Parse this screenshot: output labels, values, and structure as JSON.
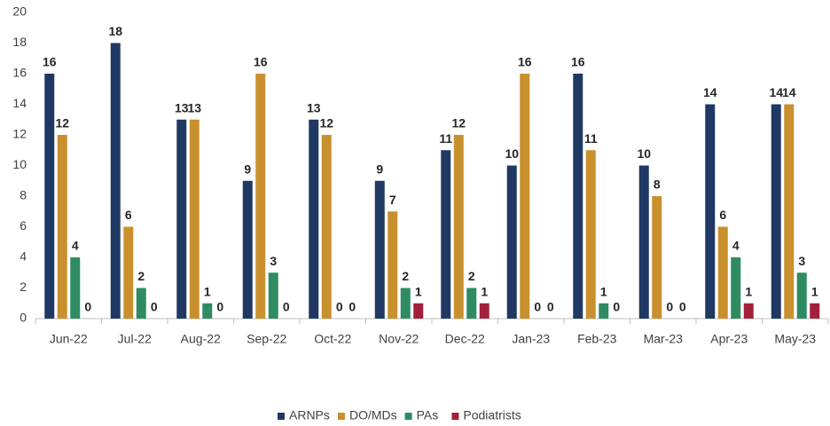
{
  "chart_data": {
    "type": "bar",
    "categories": [
      "Jun-22",
      "Jul-22",
      "Aug-22",
      "Sep-22",
      "Oct-22",
      "Nov-22",
      "Dec-22",
      "Jan-23",
      "Feb-23",
      "Mar-23",
      "Apr-23",
      "May-23"
    ],
    "series": [
      {
        "name": "ARNPs",
        "color": "#1f3864",
        "values": [
          16,
          18,
          13,
          9,
          13,
          9,
          11,
          10,
          16,
          10,
          14,
          14
        ]
      },
      {
        "name": "DO/MDs",
        "color": "#c9902e",
        "values": [
          12,
          6,
          13,
          16,
          12,
          7,
          12,
          16,
          11,
          8,
          6,
          14
        ]
      },
      {
        "name": "PAs",
        "color": "#2e8b62",
        "values": [
          4,
          2,
          1,
          3,
          0,
          2,
          2,
          0,
          1,
          0,
          4,
          3
        ]
      },
      {
        "name": "Podiatrists",
        "color": "#a3203a",
        "values": [
          0,
          0,
          0,
          0,
          0,
          1,
          1,
          0,
          0,
          0,
          1,
          1
        ]
      }
    ],
    "ylim": [
      0,
      20
    ],
    "yticks": [
      0,
      2,
      4,
      6,
      8,
      10,
      12,
      14,
      16,
      18,
      20
    ],
    "grid": false,
    "legend": "bottom"
  }
}
